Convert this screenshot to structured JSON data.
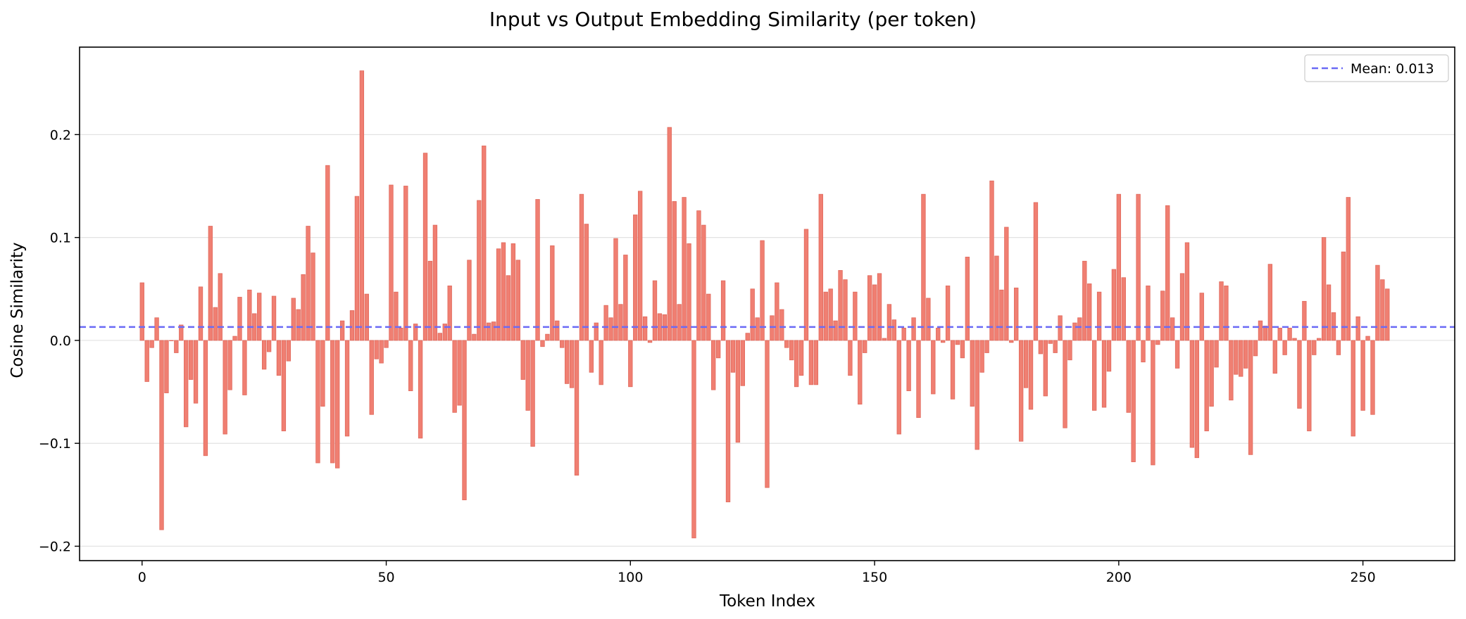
{
  "chart_data": {
    "type": "bar",
    "title": "Input vs Output Embedding Similarity (per token)",
    "xlabel": "Token Index",
    "ylabel": "Cosine Similarity",
    "xlim": [
      -12.8,
      268.8
    ],
    "ylim": [
      -0.214,
      0.285
    ],
    "xticks": [
      0,
      50,
      100,
      150,
      200,
      250
    ],
    "yticks": [
      -0.2,
      -0.1,
      0.0,
      0.1,
      0.2
    ],
    "xtick_labels": [
      "0",
      "50",
      "100",
      "150",
      "200",
      "250"
    ],
    "ytick_labels": [
      "−0.2",
      "−0.1",
      "0.0",
      "0.1",
      "0.2"
    ],
    "grid": "horizontal",
    "bar_color": "#f07f72",
    "bar_edge_color": "#e0695c",
    "mean_line": {
      "value": 0.013,
      "label": "Mean: 0.013",
      "color": "#6a6af5",
      "style": "dashed"
    },
    "legend_position": "top-right",
    "x": [
      0,
      1,
      2,
      3,
      4,
      5,
      6,
      7,
      8,
      9,
      10,
      11,
      12,
      13,
      14,
      15,
      16,
      17,
      18,
      19,
      20,
      21,
      22,
      23,
      24,
      25,
      26,
      27,
      28,
      29,
      30,
      31,
      32,
      33,
      34,
      35,
      36,
      37,
      38,
      39,
      40,
      41,
      42,
      43,
      44,
      45,
      46,
      47,
      48,
      49,
      50,
      51,
      52,
      53,
      54,
      55,
      56,
      57,
      58,
      59,
      60,
      61,
      62,
      63,
      64,
      65,
      66,
      67,
      68,
      69,
      70,
      71,
      72,
      73,
      74,
      75,
      76,
      77,
      78,
      79,
      80,
      81,
      82,
      83,
      84,
      85,
      86,
      87,
      88,
      89,
      90,
      91,
      92,
      93,
      94,
      95,
      96,
      97,
      98,
      99,
      100,
      101,
      102,
      103,
      104,
      105,
      106,
      107,
      108,
      109,
      110,
      111,
      112,
      113,
      114,
      115,
      116,
      117,
      118,
      119,
      120,
      121,
      122,
      123,
      124,
      125,
      126,
      127,
      128,
      129,
      130,
      131,
      132,
      133,
      134,
      135,
      136,
      137,
      138,
      139,
      140,
      141,
      142,
      143,
      144,
      145,
      146,
      147,
      148,
      149,
      150,
      151,
      152,
      153,
      154,
      155,
      156,
      157,
      158,
      159,
      160,
      161,
      162,
      163,
      164,
      165,
      166,
      167,
      168,
      169,
      170,
      171,
      172,
      173,
      174,
      175,
      176,
      177,
      178,
      179,
      180,
      181,
      182,
      183,
      184,
      185,
      186,
      187,
      188,
      189,
      190,
      191,
      192,
      193,
      194,
      195,
      196,
      197,
      198,
      199,
      200,
      201,
      202,
      203,
      204,
      205,
      206,
      207,
      208,
      209,
      210,
      211,
      212,
      213,
      214,
      215,
      216,
      217,
      218,
      219,
      220,
      221,
      222,
      223,
      224,
      225,
      226,
      227,
      228,
      229,
      230,
      231,
      232,
      233,
      234,
      235,
      236,
      237,
      238,
      239,
      240,
      241,
      242,
      243,
      244,
      245,
      246,
      247,
      248,
      249,
      250,
      251,
      252,
      253,
      254,
      255
    ],
    "values": [
      0.056,
      -0.04,
      -0.007,
      0.022,
      -0.184,
      -0.051,
      0.0,
      -0.012,
      0.015,
      -0.084,
      -0.038,
      -0.061,
      0.052,
      -0.112,
      0.111,
      0.032,
      0.065,
      -0.091,
      -0.048,
      0.004,
      0.042,
      -0.053,
      0.049,
      0.026,
      0.046,
      -0.028,
      -0.011,
      0.043,
      -0.034,
      -0.088,
      -0.02,
      0.041,
      0.03,
      0.064,
      0.111,
      0.085,
      -0.119,
      -0.064,
      0.17,
      -0.119,
      -0.124,
      0.019,
      -0.093,
      0.029,
      0.14,
      0.262,
      0.045,
      -0.072,
      -0.018,
      -0.022,
      -0.007,
      0.151,
      0.047,
      0.012,
      0.15,
      -0.049,
      0.016,
      -0.095,
      0.182,
      0.077,
      0.112,
      0.007,
      0.016,
      0.053,
      -0.07,
      -0.063,
      -0.155,
      0.078,
      0.006,
      0.136,
      0.189,
      0.017,
      0.018,
      0.089,
      0.095,
      0.063,
      0.094,
      0.078,
      -0.038,
      -0.068,
      -0.103,
      0.137,
      -0.006,
      0.006,
      0.092,
      0.019,
      -0.007,
      -0.042,
      -0.046,
      -0.131,
      0.142,
      0.113,
      -0.031,
      0.017,
      -0.043,
      0.034,
      0.022,
      0.099,
      0.035,
      0.083,
      -0.045,
      0.122,
      0.145,
      0.023,
      -0.002,
      0.058,
      0.026,
      0.025,
      0.207,
      0.135,
      0.035,
      0.139,
      0.094,
      -0.192,
      0.126,
      0.112,
      0.045,
      -0.048,
      -0.017,
      0.058,
      -0.157,
      -0.031,
      -0.099,
      -0.044,
      0.007,
      0.05,
      0.022,
      0.097,
      -0.143,
      0.024,
      0.056,
      0.03,
      -0.007,
      -0.019,
      -0.045,
      -0.034,
      0.108,
      -0.043,
      -0.043,
      0.142,
      0.047,
      0.05,
      0.019,
      0.068,
      0.059,
      -0.034,
      0.047,
      -0.062,
      -0.012,
      0.063,
      0.054,
      0.065,
      0.002,
      0.035,
      0.02,
      -0.091,
      0.012,
      -0.049,
      0.022,
      -0.075,
      0.142,
      0.041,
      -0.052,
      0.012,
      -0.002,
      0.053,
      -0.057,
      -0.004,
      -0.017,
      0.081,
      -0.064,
      -0.106,
      -0.031,
      -0.012,
      0.155,
      0.082,
      0.049,
      0.11,
      -0.002,
      0.051,
      -0.098,
      -0.046,
      -0.067,
      0.134,
      -0.013,
      -0.054,
      -0.003,
      -0.012,
      0.024,
      -0.085,
      -0.019,
      0.017,
      0.022,
      0.077,
      0.055,
      -0.068,
      0.047,
      -0.065,
      -0.03,
      0.069,
      0.142,
      0.061,
      -0.07,
      -0.118,
      0.142,
      -0.021,
      0.053,
      -0.121,
      -0.004,
      0.048,
      0.131,
      0.022,
      -0.027,
      0.065,
      0.095,
      -0.104,
      -0.114,
      0.046,
      -0.088,
      -0.064,
      -0.026,
      0.057,
      0.053,
      -0.058,
      -0.033,
      -0.035,
      -0.027,
      -0.111,
      -0.015,
      0.019,
      0.014,
      0.074,
      -0.032,
      0.012,
      -0.014,
      0.012,
      0.002,
      -0.066,
      0.038,
      -0.088,
      -0.014,
      0.002,
      0.1,
      0.054,
      0.027,
      -0.014,
      0.086,
      0.139,
      -0.093,
      0.023,
      -0.068,
      0.004,
      -0.072,
      0.073,
      0.059,
      0.05
    ]
  }
}
